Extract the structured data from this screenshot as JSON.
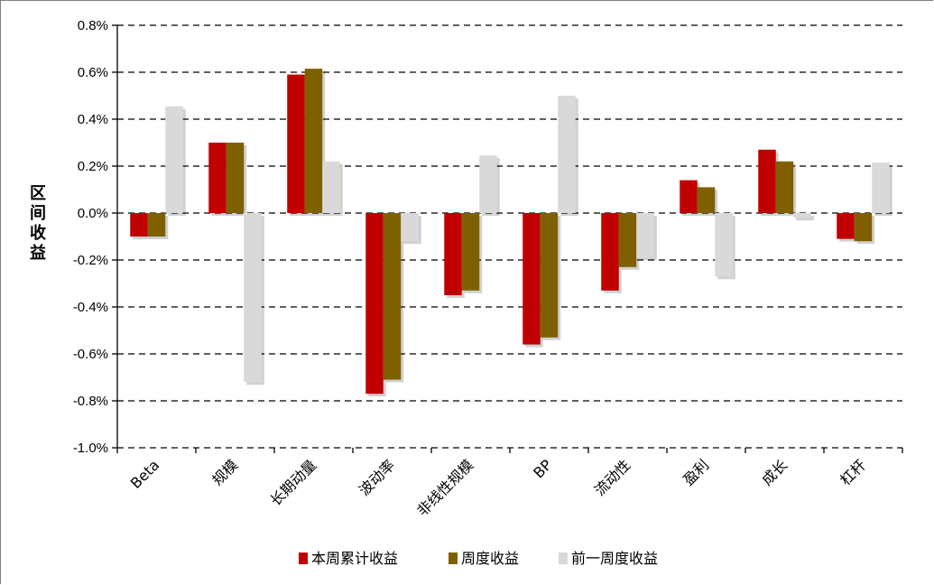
{
  "chart_data": {
    "type": "bar",
    "ylabel": "区间收益",
    "ylim": [
      -1.0,
      0.8
    ],
    "yticks": [
      "0.8%",
      "0.6%",
      "0.4%",
      "0.2%",
      "0.0%",
      "-0.2%",
      "-0.4%",
      "-0.6%",
      "-0.8%",
      "-1.0%"
    ],
    "y_tick_values": [
      0.8,
      0.6,
      0.4,
      0.2,
      0.0,
      -0.2,
      -0.4,
      -0.6,
      -0.8,
      -1.0
    ],
    "grid": "horizontal dashed",
    "legend_position": "bottom",
    "categories": [
      "Beta",
      "规模",
      "长期动量",
      "波动率",
      "非线性规模",
      "BP",
      "流动性",
      "盈利",
      "成长",
      "杠杆"
    ],
    "series": [
      {
        "name": "本周累计收益",
        "color": "#c00000",
        "values": [
          -0.1,
          0.3,
          0.59,
          -0.77,
          -0.35,
          -0.56,
          -0.33,
          0.14,
          0.27,
          -0.11
        ]
      },
      {
        "name": "周度收益",
        "color": "#7f6000",
        "values": [
          -0.1,
          0.3,
          0.615,
          -0.71,
          -0.33,
          -0.53,
          -0.23,
          0.11,
          0.22,
          -0.12
        ]
      },
      {
        "name": "前一周度收益",
        "color": "#d9d9d9",
        "values": [
          0.455,
          -0.72,
          0.22,
          -0.12,
          0.245,
          0.5,
          -0.19,
          -0.27,
          -0.02,
          0.215
        ]
      }
    ]
  }
}
